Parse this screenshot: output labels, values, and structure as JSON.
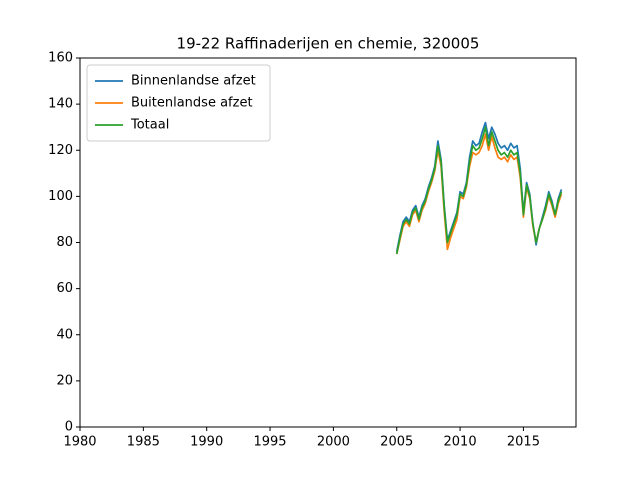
{
  "chart_data": {
    "type": "line",
    "title": "19-22 Raffinaderijen en chemie, 320005",
    "x": [
      2005.0,
      2005.25,
      2005.5,
      2005.75,
      2006.0,
      2006.25,
      2006.5,
      2006.75,
      2007.0,
      2007.25,
      2007.5,
      2007.75,
      2008.0,
      2008.25,
      2008.5,
      2008.75,
      2009.0,
      2009.25,
      2009.5,
      2009.75,
      2010.0,
      2010.25,
      2010.5,
      2010.75,
      2011.0,
      2011.25,
      2011.5,
      2011.75,
      2012.0,
      2012.25,
      2012.5,
      2012.75,
      2013.0,
      2013.25,
      2013.5,
      2013.75,
      2014.0,
      2014.25,
      2014.5,
      2014.75,
      2015.0,
      2015.25,
      2015.5,
      2015.75,
      2016.0,
      2016.25,
      2016.5,
      2016.75,
      2017.0,
      2017.25,
      2017.5,
      2017.75,
      2018.0
    ],
    "series": [
      {
        "name": "Binnenlandse afzet",
        "color": "#1f77b4",
        "values": [
          76,
          83,
          89,
          91,
          89,
          94,
          96,
          91,
          96,
          99,
          104,
          108,
          113,
          124,
          116,
          96,
          81,
          85,
          89,
          93,
          102,
          101,
          106,
          117,
          124,
          122,
          123,
          128,
          132,
          125,
          130,
          127,
          123,
          121,
          122,
          120,
          123,
          121,
          122,
          112,
          93,
          106,
          101,
          88,
          79,
          86,
          91,
          96,
          102,
          98,
          92,
          99,
          103
        ]
      },
      {
        "name": "Buitenlandse afzet",
        "color": "#ff7f0e",
        "values": [
          75,
          81,
          87,
          89,
          87,
          92,
          94,
          89,
          94,
          97,
          102,
          106,
          111,
          120,
          113,
          93,
          77,
          82,
          86,
          90,
          100,
          99,
          104,
          113,
          119,
          118,
          119,
          122,
          127,
          120,
          126,
          121,
          117,
          116,
          117,
          115,
          118,
          116,
          117,
          108,
          91,
          104,
          99,
          87,
          80,
          86,
          90,
          94,
          100,
          96,
          91,
          97,
          101
        ]
      },
      {
        "name": "Totaal",
        "color": "#2ca02c",
        "values": [
          75,
          82,
          88,
          90,
          88,
          93,
          95,
          90,
          95,
          98,
          103,
          107,
          112,
          122,
          115,
          95,
          80,
          84,
          88,
          92,
          101,
          100,
          105,
          115,
          122,
          120,
          121,
          125,
          130,
          122,
          128,
          124,
          120,
          118,
          119,
          117,
          120,
          118,
          119,
          110,
          92,
          105,
          100,
          88,
          80,
          86,
          90,
          95,
          101,
          97,
          92,
          98,
          102
        ]
      }
    ],
    "xlim": [
      1980,
      2019.15
    ],
    "ylim": [
      0,
      160
    ],
    "xticks": [
      1980,
      1985,
      1990,
      1995,
      2000,
      2005,
      2010,
      2015
    ],
    "yticks": [
      0,
      20,
      40,
      60,
      80,
      100,
      120,
      140,
      160
    ],
    "legend": "upper left"
  }
}
